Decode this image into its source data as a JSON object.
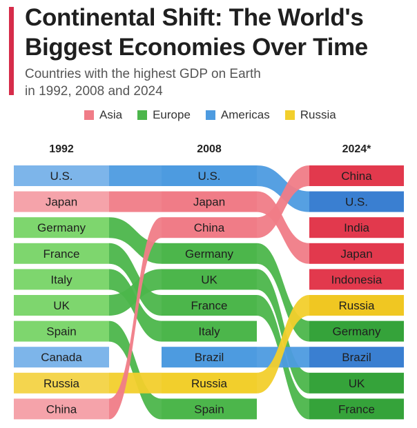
{
  "header": {
    "title_line1": "Continental Shift: The World's",
    "title_line2": "Biggest Economies Over Time",
    "subtitle_line1": "Countries with the highest GDP on Earth",
    "subtitle_line2": "in 1992, 2008 and 2024",
    "accent_color": "#d62c4a"
  },
  "legend": [
    {
      "label": "Asia",
      "color": "#f07c87"
    },
    {
      "label": "Europe",
      "color": "#4cb64b"
    },
    {
      "label": "Americas",
      "color": "#4d9be0"
    },
    {
      "label": "Russia",
      "color": "#f2cf2c"
    }
  ],
  "chart_data": {
    "type": "table",
    "subtype": "bump chart (GDP rank by year)",
    "columns": [
      "1992",
      "2008",
      "2024*"
    ],
    "rankings": {
      "1992": [
        "U.S.",
        "Japan",
        "Germany",
        "France",
        "Italy",
        "UK",
        "Spain",
        "Canada",
        "Russia",
        "China"
      ],
      "2008": [
        "U.S.",
        "Japan",
        "China",
        "Germany",
        "UK",
        "France",
        "Italy",
        "Brazil",
        "Russia",
        "Spain"
      ],
      "2024*": [
        "China",
        "U.S.",
        "India",
        "Japan",
        "Indonesia",
        "Russia",
        "Germany",
        "Brazil",
        "UK",
        "France"
      ]
    },
    "regions": {
      "U.S.": "Americas",
      "Canada": "Americas",
      "Brazil": "Americas",
      "Japan": "Asia",
      "China": "Asia",
      "India": "Asia",
      "Indonesia": "Asia",
      "Germany": "Europe",
      "France": "Europe",
      "Italy": "Europe",
      "UK": "Europe",
      "Spain": "Europe",
      "Russia": "Russia"
    },
    "region_colors": {
      "Americas": [
        "#7db5ea",
        "#4d9be0",
        "#3a7fd1"
      ],
      "Asia": [
        "#f5a3aa",
        "#f07c87",
        "#e2394d"
      ],
      "Europe": [
        "#7ed66e",
        "#4cb64b",
        "#35a33a"
      ],
      "Russia": [
        "#f4d54e",
        "#f2cf2c",
        "#f0c722"
      ]
    }
  }
}
